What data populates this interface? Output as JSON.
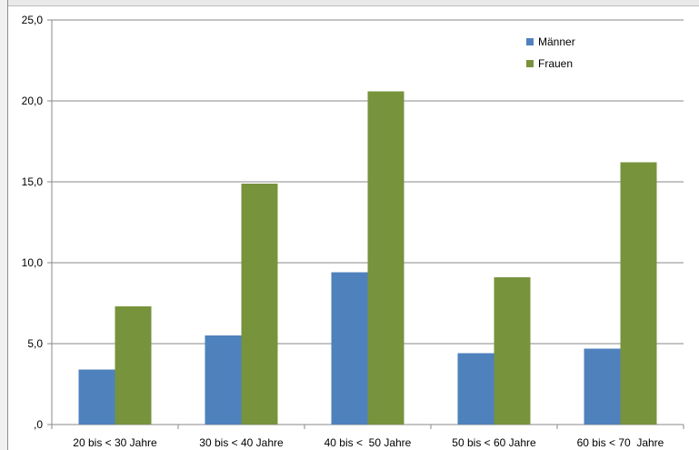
{
  "chart_data": {
    "type": "bar",
    "title": "",
    "xlabel": "",
    "ylabel": "",
    "categories": [
      "20 bis < 30 Jahre",
      "30 bis < 40 Jahre",
      "40 bis <  50 Jahre",
      "50 bis < 60 Jahre",
      "60 bis < 70  Jahre"
    ],
    "series": [
      {
        "name": "Männer",
        "color": "#4f81bd",
        "values": [
          3.4,
          5.5,
          9.4,
          4.4,
          4.7
        ]
      },
      {
        "name": "Frauen",
        "color": "#77933c",
        "values": [
          7.3,
          14.9,
          20.6,
          9.1,
          16.2
        ]
      }
    ],
    "ylim": [
      0,
      25
    ],
    "yticks": [
      0,
      5,
      10,
      15,
      20,
      25
    ],
    "ytick_labels": [
      ",0",
      "5,0",
      "10,0",
      "15,0",
      "20,0",
      "25,0"
    ],
    "grid": true,
    "legend_position": "top-right"
  }
}
